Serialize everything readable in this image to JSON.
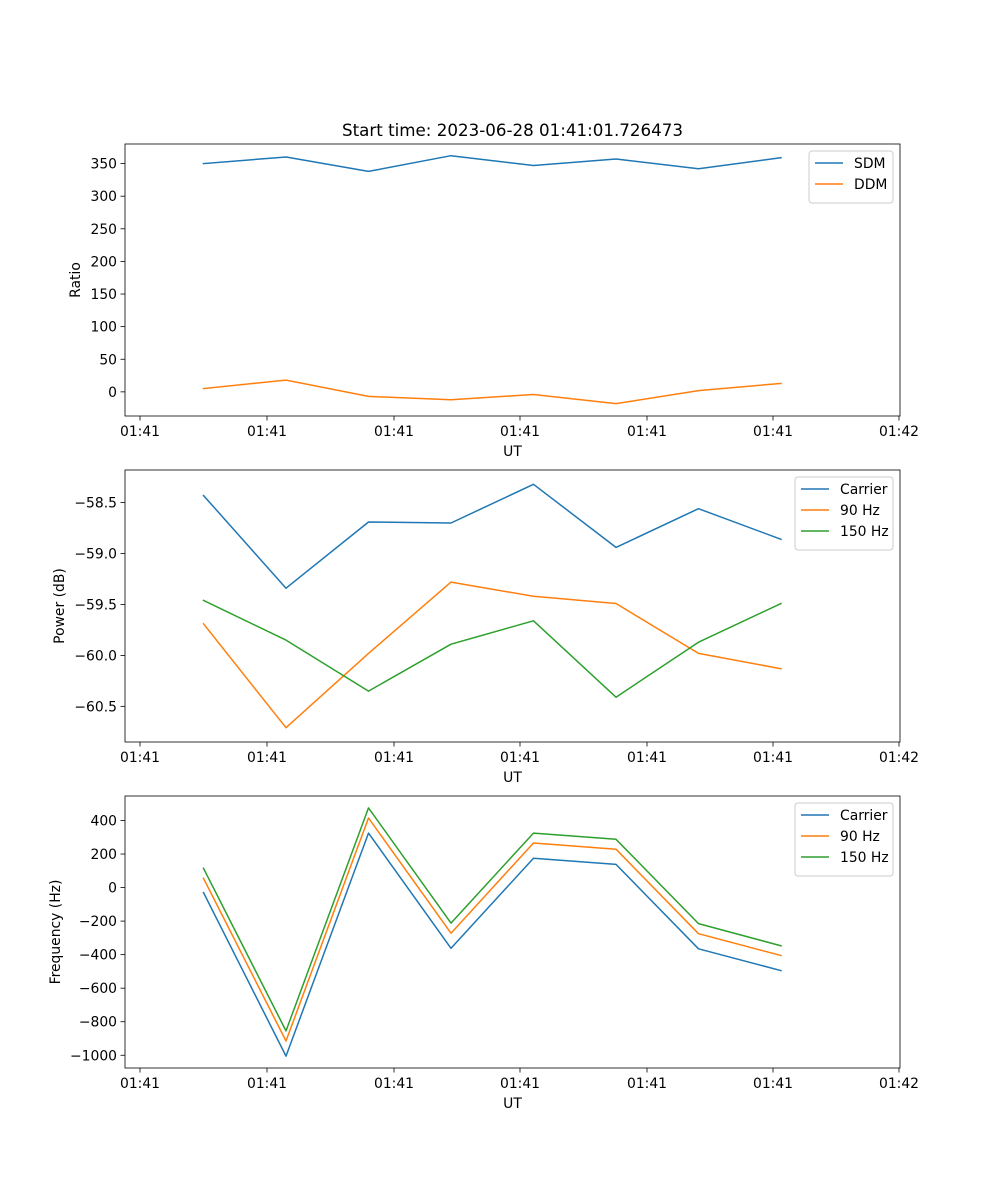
{
  "title": "Start time: 2023-06-28 01:41:01.726473",
  "chart_data": [
    {
      "type": "line",
      "title": "Start time: 2023-06-28 01:41:01.726473",
      "xlabel": "UT",
      "ylabel": "Ratio",
      "x_tick_labels": [
        "01:41",
        "01:41",
        "01:41",
        "01:41",
        "01:41",
        "01:41",
        "01:42"
      ],
      "y_ticks": [
        0,
        50,
        100,
        150,
        200,
        250,
        300,
        350
      ],
      "y_tick_labels": [
        "0",
        "50",
        "100",
        "150",
        "200",
        "250",
        "300",
        "350"
      ],
      "ylim": [
        -37,
        380
      ],
      "legend_position": "top-right",
      "series": [
        {
          "name": "SDM",
          "color": "#1f77b4",
          "values": [
            350,
            360,
            338,
            362,
            347,
            357,
            342,
            359
          ]
        },
        {
          "name": "DDM",
          "color": "#ff7f0e",
          "values": [
            5,
            18,
            -7,
            -12,
            -4,
            -18,
            2,
            13
          ]
        }
      ]
    },
    {
      "type": "line",
      "title": "",
      "xlabel": "UT",
      "ylabel": "Power (dB)",
      "x_tick_labels": [
        "01:41",
        "01:41",
        "01:41",
        "01:41",
        "01:41",
        "01:41",
        "01:42"
      ],
      "y_ticks": [
        -58.5,
        -59.0,
        -59.5,
        -60.0,
        -60.5
      ],
      "y_tick_labels": [
        "−58.5",
        "−59.0",
        "−59.5",
        "−60.0",
        "−60.5"
      ],
      "ylim": [
        -60.85,
        -58.18
      ],
      "legend_position": "top-right",
      "series": [
        {
          "name": "Carrier",
          "color": "#1f77b4",
          "values": [
            -58.43,
            -59.34,
            -58.69,
            -58.7,
            -58.32,
            -58.94,
            -58.56,
            -58.86
          ]
        },
        {
          "name": "90 Hz",
          "color": "#ff7f0e",
          "values": [
            -59.69,
            -60.71,
            -59.98,
            -59.28,
            -59.42,
            -59.49,
            -59.98,
            -60.13
          ]
        },
        {
          "name": "150 Hz",
          "color": "#2ca02c",
          "values": [
            -59.46,
            -59.85,
            -60.35,
            -59.89,
            -59.66,
            -60.41,
            -59.87,
            -59.49
          ]
        }
      ]
    },
    {
      "type": "line",
      "title": "",
      "xlabel": "UT",
      "ylabel": "Frequency (Hz)",
      "x_tick_labels": [
        "01:41",
        "01:41",
        "01:41",
        "01:41",
        "01:41",
        "01:41",
        "01:42"
      ],
      "y_ticks": [
        400,
        200,
        0,
        -200,
        -400,
        -600,
        -800,
        -1000
      ],
      "y_tick_labels": [
        "400",
        "200",
        "0",
        "−200",
        "−400",
        "−600",
        "−800",
        "−1000"
      ],
      "ylim": [
        -1076,
        546
      ],
      "legend_position": "top-right",
      "series": [
        {
          "name": "Carrier",
          "color": "#1f77b4",
          "values": [
            -30,
            -1005,
            325,
            -362,
            175,
            138,
            -365,
            -495
          ]
        },
        {
          "name": "90 Hz",
          "color": "#ff7f0e",
          "values": [
            55,
            -915,
            415,
            -272,
            266,
            229,
            -275,
            -405
          ]
        },
        {
          "name": "150 Hz",
          "color": "#2ca02c",
          "values": [
            115,
            -855,
            475,
            -212,
            325,
            288,
            -215,
            -347
          ]
        }
      ]
    }
  ]
}
